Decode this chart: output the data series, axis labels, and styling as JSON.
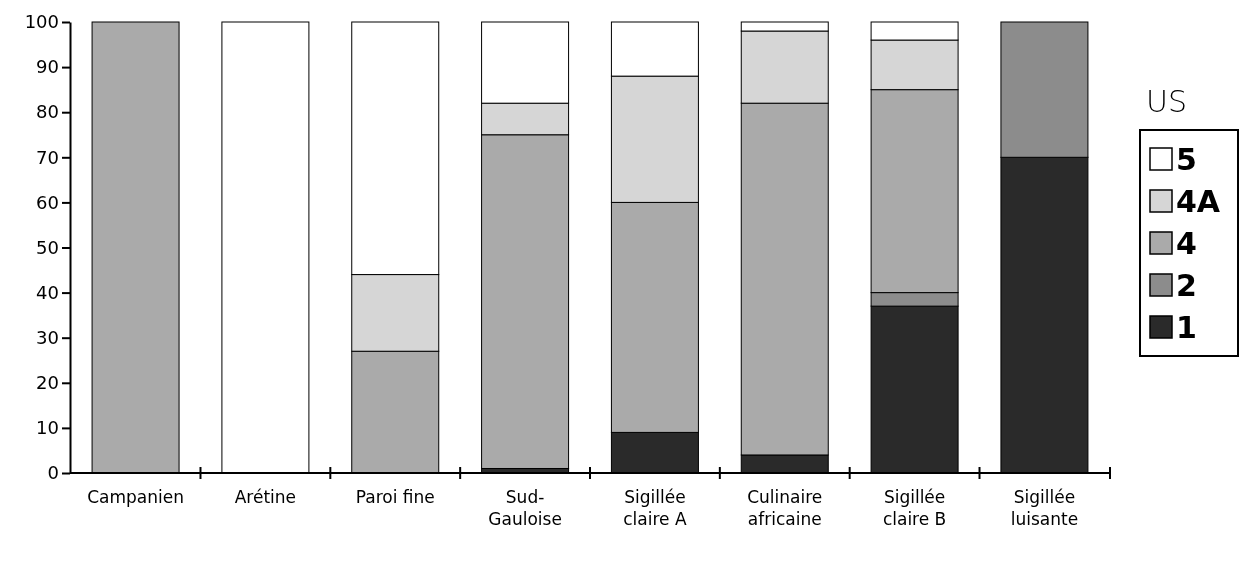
{
  "chart_data": {
    "type": "bar",
    "stacked": true,
    "categories": [
      "Campanien",
      "Arétine",
      "Paroi fine",
      "Sud-\nGauloise",
      "Sigillée\nclaire A",
      "Culinaire\nafricaine",
      "Sigillée\nclaire B",
      "Sigillée\nluisante"
    ],
    "series": [
      {
        "name": "1",
        "color": "#2a2a2a",
        "values": [
          0,
          0,
          0,
          1,
          9,
          4,
          37,
          70
        ]
      },
      {
        "name": "2",
        "color": "#8c8c8c",
        "values": [
          0,
          0,
          0,
          0,
          0,
          0,
          3,
          30
        ]
      },
      {
        "name": "4",
        "color": "#aaaaaa",
        "values": [
          100,
          0,
          27,
          74,
          51,
          78,
          45,
          0
        ]
      },
      {
        "name": "4A",
        "color": "#d6d6d6",
        "values": [
          0,
          0,
          17,
          7,
          28,
          16,
          11,
          0
        ]
      },
      {
        "name": "5",
        "color": "#ffffff",
        "values": [
          0,
          100,
          56,
          18,
          12,
          2,
          4,
          0
        ]
      }
    ],
    "legend_title": "US",
    "legend": "right",
    "grid": false,
    "ylim": [
      0,
      100
    ],
    "yticks": [
      0,
      10,
      20,
      30,
      40,
      50,
      60,
      70,
      80,
      90,
      100
    ]
  }
}
